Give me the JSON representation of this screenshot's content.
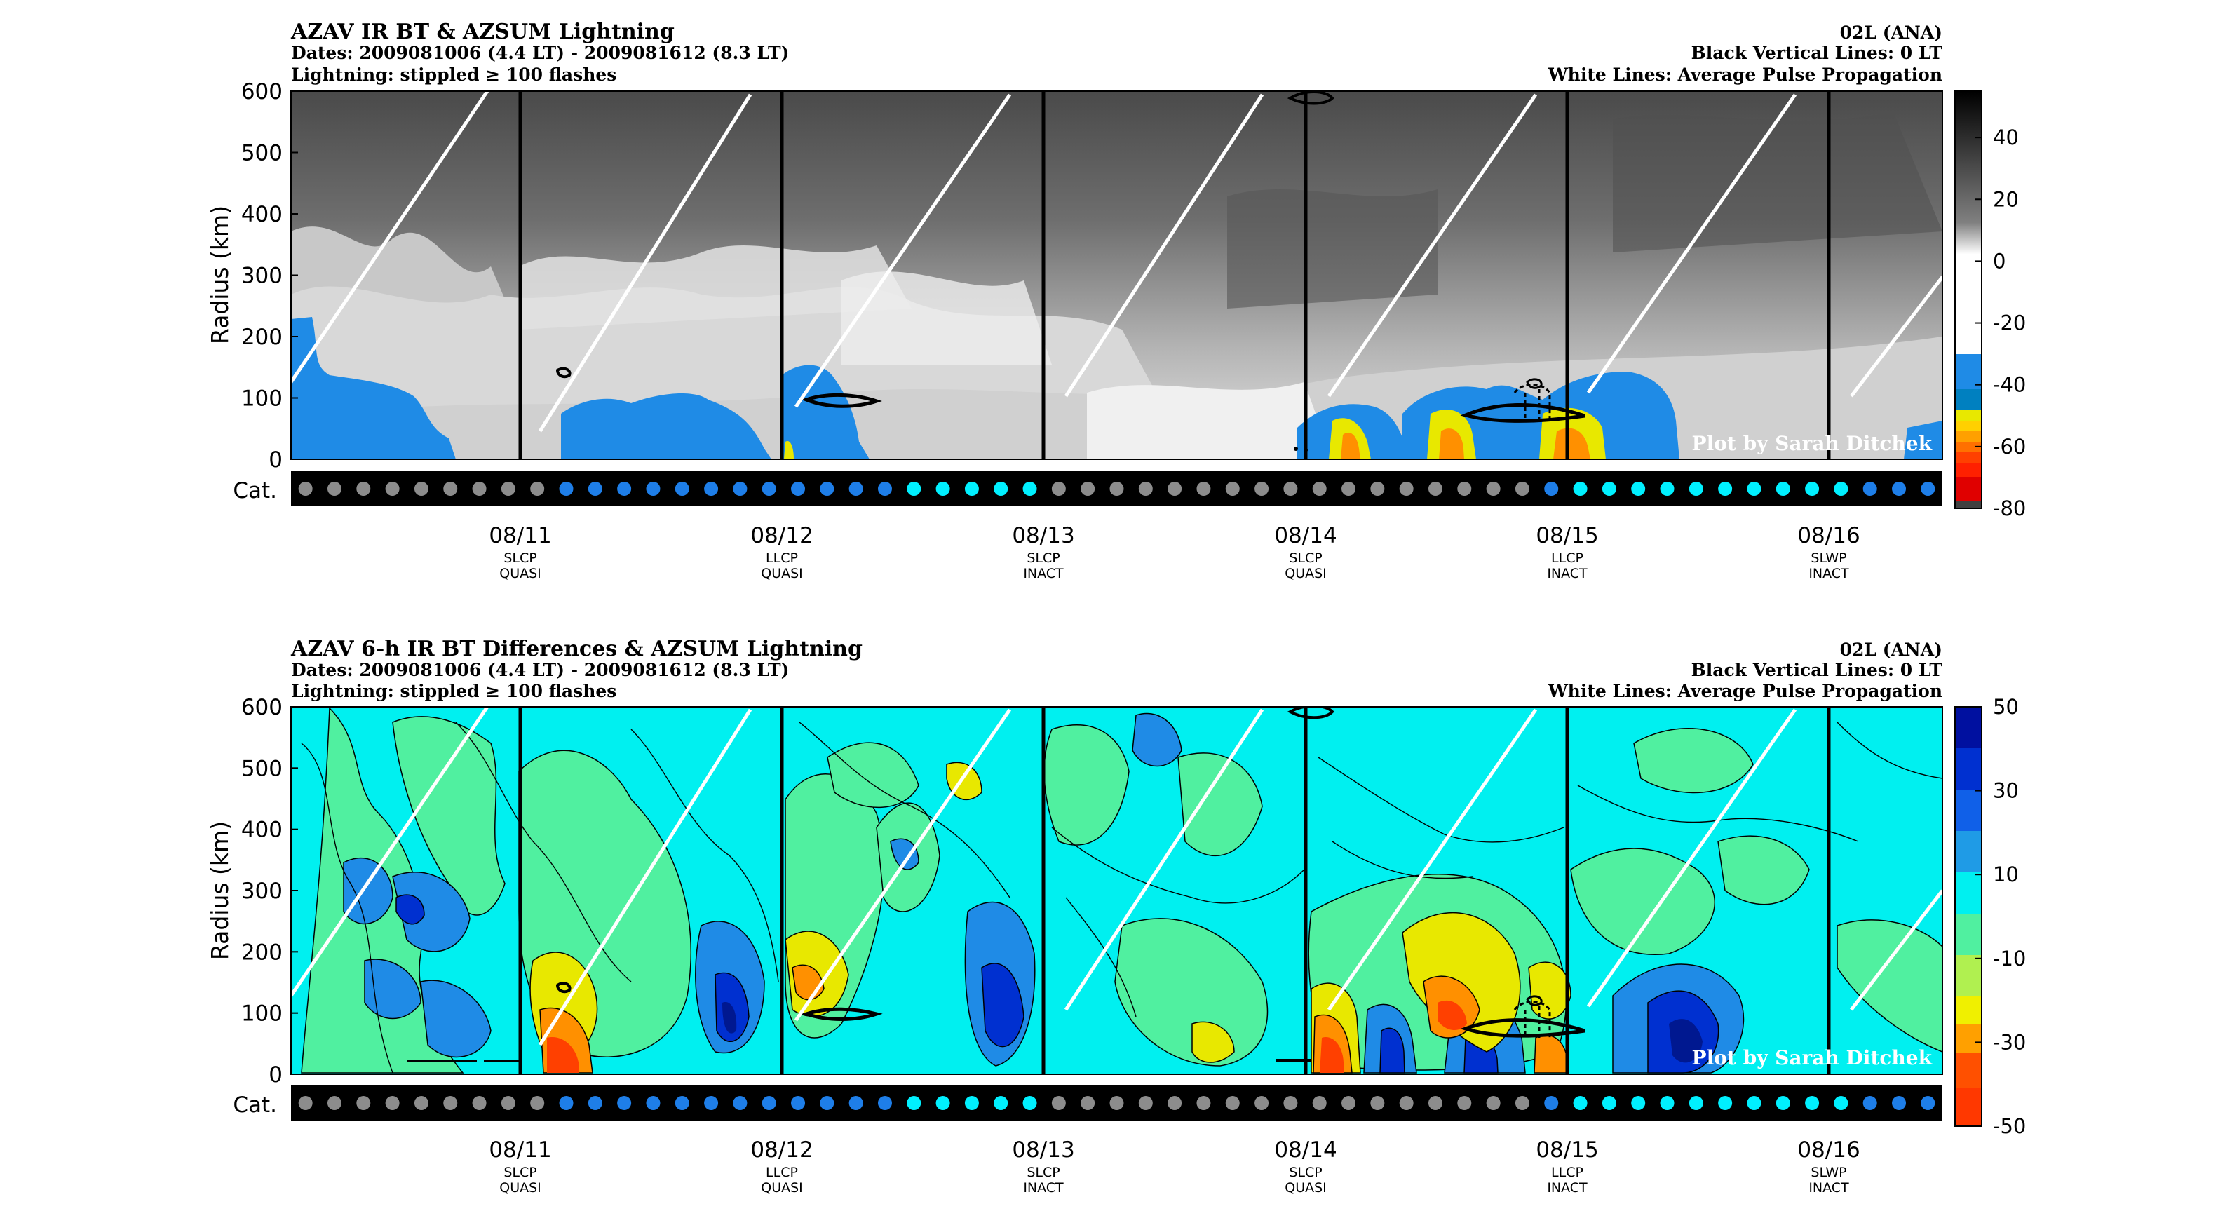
{
  "chart_data": [
    {
      "type": "heatmap",
      "title": "AZAV IR BT & AZSUM Lightning",
      "subtitle_lines": [
        "Dates: 2009081006 (4.4 LT) - 2009081612 (8.3 LT)",
        "Lightning: stippled ≥ 100 flashes"
      ],
      "right_lines": [
        "02L (ANA)",
        "Black Vertical Lines: 0 LT",
        "White Lines: Average Pulse Propagation"
      ],
      "ylabel": "Radius (km)",
      "ylim": [
        0,
        600
      ],
      "yticks": [
        "600",
        "500",
        "400",
        "300",
        "200",
        "100",
        "0"
      ],
      "cat_label": "Cat.",
      "xticks": [
        {
          "date": "08/11",
          "cat1": "SLCP",
          "cat2": "QUASI"
        },
        {
          "date": "08/12",
          "cat1": "LLCP",
          "cat2": "QUASI"
        },
        {
          "date": "08/13",
          "cat1": "SLCP",
          "cat2": "INACT"
        },
        {
          "date": "08/14",
          "cat1": "SLCP",
          "cat2": "QUASI"
        },
        {
          "date": "08/15",
          "cat1": "LLCP",
          "cat2": "INACT"
        },
        {
          "date": "08/16",
          "cat1": "SLWP",
          "cat2": "INACT"
        }
      ],
      "colorbar": {
        "min": -80,
        "max": 55,
        "ticks": [
          "40",
          "20",
          "0",
          "-20",
          "-40",
          "-60",
          "-80"
        ]
      },
      "credit": "Plot by Sarah Ditchek",
      "cat_dots": [
        "gray",
        "gray",
        "gray",
        "gray",
        "gray",
        "gray",
        "gray",
        "gray",
        "gray",
        "blue",
        "blue",
        "blue",
        "blue",
        "blue",
        "blue",
        "blue",
        "blue",
        "blue",
        "blue",
        "blue",
        "blue",
        "cyan",
        "cyan",
        "cyan",
        "cyan",
        "cyan",
        "gray",
        "gray",
        "gray",
        "gray",
        "gray",
        "gray",
        "gray",
        "gray",
        "gray",
        "gray",
        "gray",
        "gray",
        "gray",
        "gray",
        "gray",
        "gray",
        "gray",
        "blue",
        "cyan",
        "cyan",
        "cyan",
        "cyan",
        "cyan",
        "cyan",
        "cyan",
        "cyan",
        "cyan",
        "cyan",
        "blue",
        "blue",
        "blue"
      ]
    },
    {
      "type": "heatmap",
      "title": "AZAV 6-h IR BT Differences & AZSUM Lightning",
      "subtitle_lines": [
        "Dates: 2009081006 (4.4 LT) - 2009081612 (8.3 LT)",
        "Lightning: stippled ≥ 100 flashes"
      ],
      "right_lines": [
        "02L (ANA)",
        "Black Vertical Lines: 0 LT",
        "White Lines: Average Pulse Propagation"
      ],
      "ylabel": "Radius (km)",
      "ylim": [
        0,
        600
      ],
      "yticks": [
        "600",
        "500",
        "400",
        "300",
        "200",
        "100",
        "0"
      ],
      "cat_label": "Cat.",
      "xticks": [
        {
          "date": "08/11",
          "cat1": "SLCP",
          "cat2": "QUASI"
        },
        {
          "date": "08/12",
          "cat1": "LLCP",
          "cat2": "QUASI"
        },
        {
          "date": "08/13",
          "cat1": "SLCP",
          "cat2": "INACT"
        },
        {
          "date": "08/14",
          "cat1": "SLCP",
          "cat2": "QUASI"
        },
        {
          "date": "08/15",
          "cat1": "LLCP",
          "cat2": "INACT"
        },
        {
          "date": "08/16",
          "cat1": "SLWP",
          "cat2": "INACT"
        }
      ],
      "colorbar": {
        "min": -50,
        "max": 50,
        "ticks": [
          "50",
          "30",
          "10",
          "-10",
          "-30",
          "-50"
        ]
      },
      "credit": "Plot by Sarah Ditchek",
      "cat_dots": [
        "gray",
        "gray",
        "gray",
        "gray",
        "gray",
        "gray",
        "gray",
        "gray",
        "gray",
        "blue",
        "blue",
        "blue",
        "blue",
        "blue",
        "blue",
        "blue",
        "blue",
        "blue",
        "blue",
        "blue",
        "blue",
        "cyan",
        "cyan",
        "cyan",
        "cyan",
        "cyan",
        "gray",
        "gray",
        "gray",
        "gray",
        "gray",
        "gray",
        "gray",
        "gray",
        "gray",
        "gray",
        "gray",
        "gray",
        "gray",
        "gray",
        "gray",
        "gray",
        "gray",
        "blue",
        "cyan",
        "cyan",
        "cyan",
        "cyan",
        "cyan",
        "cyan",
        "cyan",
        "cyan",
        "cyan",
        "cyan",
        "blue",
        "blue",
        "blue"
      ]
    }
  ],
  "colors": {
    "gray_dot": "#8c8c8c",
    "blue_dot": "#1e7ee8",
    "cyan_dot": "#00f0ff",
    "cat_bar": "#000000",
    "diff_background": "#00f0f0"
  }
}
